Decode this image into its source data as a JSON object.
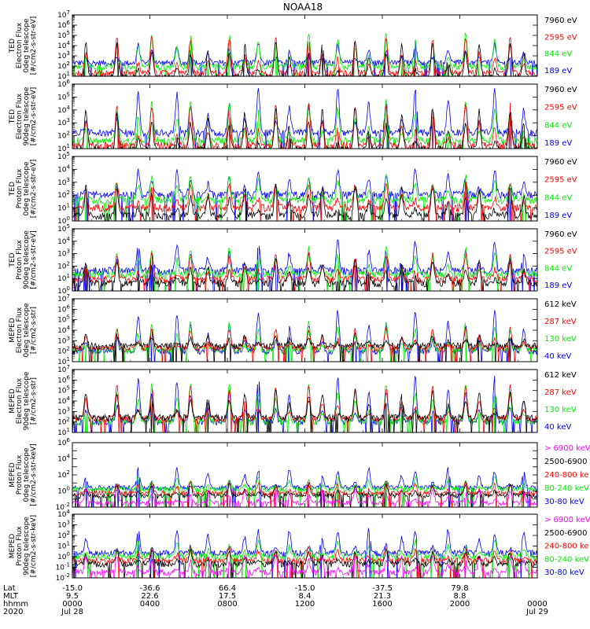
{
  "title": "NOAA18",
  "colors": {
    "black": "#000000",
    "red": "#ff0000",
    "green": "#00ee00",
    "blue": "#0000ff",
    "magenta": "#ff00ff"
  },
  "chart_data": [
    {
      "type": "line",
      "panel": 1,
      "ylabel": [
        "TED",
        "Electron Flux",
        "0deg telescope",
        "[#/cm2-s-str-eV]"
      ],
      "ylog": true,
      "ylim_exp": [
        1,
        7
      ],
      "ytick_exp": [
        1,
        2,
        3,
        4,
        5,
        6,
        7
      ],
      "legend": [
        {
          "name": "7960 eV",
          "color": "#000000"
        },
        {
          "name": "2595 eV",
          "color": "#ff0000"
        },
        {
          "name": "844 eV",
          "color": "#00ee00"
        },
        {
          "name": "189 eV",
          "color": "#0000ff"
        }
      ],
      "floors": [
        0.9,
        1.3,
        1.9,
        2.3
      ],
      "peaks": [
        4.6,
        4.9,
        5.3,
        4.2
      ]
    },
    {
      "type": "line",
      "panel": 2,
      "ylabel": [
        "TED",
        "Electron Flux",
        "90deg telescope",
        "[#/cm2-s-str-eV]"
      ],
      "ylog": true,
      "ylim_exp": [
        1,
        6
      ],
      "ytick_exp": [
        1,
        2,
        3,
        4,
        5,
        6
      ],
      "legend": [
        {
          "name": "7960 eV",
          "color": "#000000"
        },
        {
          "name": "2595 eV",
          "color": "#ff0000"
        },
        {
          "name": "844 eV",
          "color": "#00ee00"
        },
        {
          "name": "189 eV",
          "color": "#0000ff"
        }
      ],
      "floors": [
        0.9,
        1.2,
        1.6,
        2.2
      ],
      "peaks": [
        4.2,
        4.5,
        4.8,
        5.6
      ]
    },
    {
      "type": "line",
      "panel": 3,
      "ylabel": [
        "TED",
        "Proton Flux",
        "0deg telescope",
        "[#/cm2-s-str-eV]"
      ],
      "ylog": true,
      "ylim_exp": [
        0,
        5
      ],
      "ytick_exp": [
        0,
        1,
        2,
        3,
        4,
        5
      ],
      "legend": [
        {
          "name": "7960 eV",
          "color": "#000000"
        },
        {
          "name": "2595 eV",
          "color": "#ff0000"
        },
        {
          "name": "844 eV",
          "color": "#00ee00"
        },
        {
          "name": "189 eV",
          "color": "#0000ff"
        }
      ],
      "floors": [
        0.4,
        1.0,
        1.6,
        2.0
      ],
      "peaks": [
        2.8,
        3.0,
        3.6,
        4.0
      ]
    },
    {
      "type": "line",
      "panel": 4,
      "ylabel": [
        "TED",
        "Proton Flux",
        "90deg telescope",
        "[#/cm2-s-str-eV]"
      ],
      "ylog": true,
      "ylim_exp": [
        0,
        5
      ],
      "ytick_exp": [
        0,
        1,
        2,
        3,
        4,
        5
      ],
      "legend": [
        {
          "name": "7960 eV",
          "color": "#000000"
        },
        {
          "name": "2595 eV",
          "color": "#ff0000"
        },
        {
          "name": "844 eV",
          "color": "#00ee00"
        },
        {
          "name": "189 eV",
          "color": "#0000ff"
        }
      ],
      "floors": [
        0.6,
        0.9,
        1.3,
        1.6
      ],
      "peaks": [
        2.5,
        3.0,
        3.5,
        4.0
      ]
    },
    {
      "type": "line",
      "panel": 5,
      "ylabel": [
        "MEPED",
        "Electron Flux",
        "0deg telescope",
        "[#/cm2-s-str]"
      ],
      "ylog": true,
      "ylim_exp": [
        1,
        7
      ],
      "ytick_exp": [
        1,
        2,
        3,
        4,
        5,
        6,
        7
      ],
      "legend": [
        {
          "name": "612 keV",
          "color": "#000000"
        },
        {
          "name": "287 keV",
          "color": "#ff0000"
        },
        {
          "name": "130 keV",
          "color": "#00ee00"
        },
        {
          "name": "40 keV",
          "color": "#0000ff"
        }
      ],
      "floors": [
        2.5,
        2.3,
        2.1,
        2.0
      ],
      "peaks": [
        3.6,
        4.2,
        4.8,
        5.8
      ]
    },
    {
      "type": "line",
      "panel": 6,
      "ylabel": [
        "MEPED",
        "Electron Flux",
        "90deg telescope",
        "[#/cm2-s-str]"
      ],
      "ylog": true,
      "ylim_exp": [
        1,
        7
      ],
      "ytick_exp": [
        1,
        2,
        3,
        4,
        5,
        6,
        7
      ],
      "legend": [
        {
          "name": "612 keV",
          "color": "#000000"
        },
        {
          "name": "287 keV",
          "color": "#ff0000"
        },
        {
          "name": "130 keV",
          "color": "#00ee00"
        },
        {
          "name": "40 keV",
          "color": "#0000ff"
        }
      ],
      "floors": [
        2.4,
        2.3,
        2.0,
        2.0
      ],
      "peaks": [
        5.0,
        5.4,
        5.8,
        6.3
      ]
    },
    {
      "type": "line",
      "panel": 7,
      "ylabel": [
        "MEPED",
        "Proton Flux",
        "0deg telescope",
        "[#/cm2-s-str-keV]"
      ],
      "ylog": true,
      "ylim_exp": [
        -2,
        6
      ],
      "ytick_exp": [
        -2,
        0,
        2,
        4,
        6
      ],
      "legend": [
        {
          "name": "> 6900 keV",
          "color": "#ff00ff"
        },
        {
          "name": "2500-6900",
          "color": "#000000"
        },
        {
          "name": "240-800 ke",
          "color": "#ff0000"
        },
        {
          "name": "80-240 keV",
          "color": "#00ee00"
        },
        {
          "name": "30-80 keV",
          "color": "#0000ff"
        }
      ],
      "floors": [
        -1.5,
        -0.6,
        -0.3,
        0.2,
        0.4
      ],
      "peaks": [
        0.3,
        0.8,
        1.2,
        1.8,
        2.8
      ]
    },
    {
      "type": "line",
      "panel": 8,
      "ylabel": [
        "MEPED",
        "Proton Flux",
        "90deg telescope",
        "[#/cm2-s-str-keV]"
      ],
      "ylog": true,
      "ylim_exp": [
        -2,
        4
      ],
      "ytick_exp": [
        -2,
        -1,
        0,
        1,
        2,
        3,
        4
      ],
      "legend": [
        {
          "name": "> 6900 keV",
          "color": "#ff00ff"
        },
        {
          "name": "2500-6900",
          "color": "#000000"
        },
        {
          "name": "240-800 ke",
          "color": "#ff0000"
        },
        {
          "name": "80-240 keV",
          "color": "#00ee00"
        },
        {
          "name": "30-80 keV",
          "color": "#0000ff"
        }
      ],
      "floors": [
        -1.5,
        -0.7,
        -0.4,
        0.0,
        0.3
      ],
      "peaks": [
        0.2,
        0.6,
        0.9,
        1.5,
        2.6
      ]
    }
  ],
  "xaxis": {
    "row_labels": [
      "Lat",
      "MLT",
      "hhmm",
      "2020"
    ],
    "ticks": [
      {
        "hour": 0,
        "lat": "-15.0",
        "mlt": "9.5",
        "hhmm": "0000",
        "date": "Jul 28"
      },
      {
        "hour": 4,
        "lat": "-36.6",
        "mlt": "22.6",
        "hhmm": "0400",
        "date": ""
      },
      {
        "hour": 8,
        "lat": "66.4",
        "mlt": "17.5",
        "hhmm": "0800",
        "date": ""
      },
      {
        "hour": 12,
        "lat": "-15.0",
        "mlt": "8.4",
        "hhmm": "1200",
        "date": ""
      },
      {
        "hour": 16,
        "lat": "-37.5",
        "mlt": "21.3",
        "hhmm": "1600",
        "date": ""
      },
      {
        "hour": 20,
        "lat": "79.8",
        "mlt": "8.8",
        "hhmm": "2000",
        "date": ""
      },
      {
        "hour": 24,
        "lat": "",
        "mlt": "",
        "hhmm": "0000",
        "date": "Jul 29"
      }
    ],
    "range_hours": [
      0,
      24
    ]
  },
  "pass_centers_hours": [
    0.7,
    2.3,
    3.4,
    4.1,
    5.4,
    6.1,
    7.0,
    8.1,
    8.9,
    9.6,
    10.5,
    11.2,
    12.2,
    12.9,
    13.7,
    14.6,
    15.3,
    16.2,
    17.0,
    17.7,
    18.6,
    19.4,
    20.3,
    21.0,
    21.8,
    22.6,
    23.3
  ]
}
